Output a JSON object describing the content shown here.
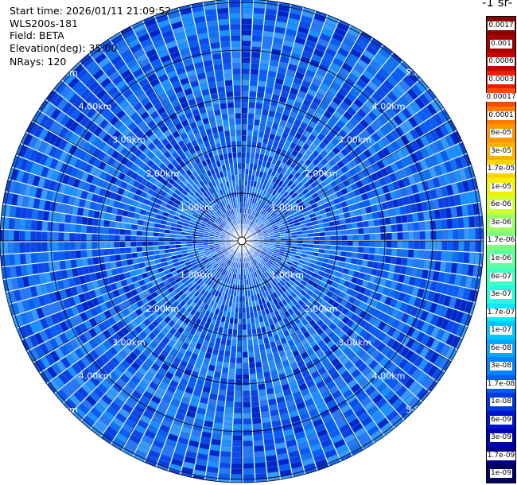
{
  "info": {
    "start_time": "Start time: 2026/01/11 21:09:52",
    "instrument": "WLS200s-181",
    "field": "Field: BETA",
    "elevation": "Elevation(deg): 35.00",
    "nrays": "NRays: 120"
  },
  "colorbar": {
    "unit_label": "-1 sr-",
    "labels": [
      "0.0017",
      "0.001",
      "0.0006",
      "0.0003",
      "0.00017",
      "0.0001",
      "6e-05",
      "3e-05",
      "1.7e-05",
      "1e-05",
      "6e-06",
      "3e-06",
      "1.7e-06",
      "1e-06",
      "6e-07",
      "3e-07",
      "1.7e-07",
      "1e-07",
      "6e-08",
      "3e-08",
      "1.7e-08",
      "1e-08",
      "6e-09",
      "3e-09",
      "1.7e-09",
      "1e-09"
    ],
    "colors": [
      "#8b0000",
      "#a80000",
      "#d10000",
      "#f51a00",
      "#ff4a00",
      "#ff7a00",
      "#ff9800",
      "#ffb100",
      "#ffd200",
      "#f2f200",
      "#cfff2f",
      "#9dff5f",
      "#7dff7d",
      "#5dffa0",
      "#3dffc2",
      "#1effe3",
      "#00eaff",
      "#00c8ff",
      "#00a6ff",
      "#0084ff",
      "#0060f0",
      "#0038e0",
      "#0014d0",
      "#0000b0",
      "#00008a",
      "#000060"
    ]
  },
  "range_rings": {
    "labels": [
      "1.00km",
      "2.00km",
      "3.00km",
      "4.00km",
      "5.00km"
    ],
    "values_km": [
      1,
      2,
      3,
      4,
      5
    ]
  },
  "ppi": {
    "rays": 120,
    "max_range_km": 6.5
  }
}
